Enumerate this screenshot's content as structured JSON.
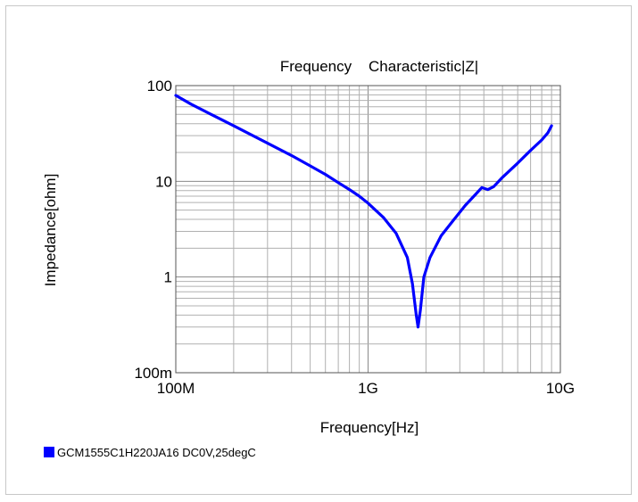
{
  "chart_data": {
    "type": "line",
    "title": "Frequency    Characteristic|Z|",
    "xlabel": "Frequency[Hz]",
    "ylabel": "Impedance[ohm]",
    "xscale": "log",
    "yscale": "log",
    "xlim": [
      100000000,
      10000000000
    ],
    "ylim": [
      0.1,
      100
    ],
    "grid": true,
    "x_ticks": [
      {
        "value": 100000000,
        "label": "100M"
      },
      {
        "value": 1000000000,
        "label": "1G"
      },
      {
        "value": 10000000000,
        "label": "10G"
      }
    ],
    "y_ticks": [
      {
        "value": 0.1,
        "label": "100m"
      },
      {
        "value": 1,
        "label": "1"
      },
      {
        "value": 10,
        "label": "10"
      },
      {
        "value": 100,
        "label": "100"
      }
    ],
    "legend_position": "bottom-left",
    "series": [
      {
        "name": "GCM1555C1H220JA16 DC0V,25degC",
        "color": "#0000ff",
        "points": [
          [
            100000000,
            79
          ],
          [
            120000000,
            64
          ],
          [
            150000000,
            51
          ],
          [
            200000000,
            38
          ],
          [
            300000000,
            25
          ],
          [
            400000000,
            18.6
          ],
          [
            500000000,
            14.5
          ],
          [
            600000000,
            11.8
          ],
          [
            700000000,
            9.7
          ],
          [
            800000000,
            8.2
          ],
          [
            900000000,
            7.0
          ],
          [
            1000000000,
            5.9
          ],
          [
            1200000000,
            4.2
          ],
          [
            1400000000,
            2.85
          ],
          [
            1600000000,
            1.6
          ],
          [
            1700000000,
            0.85
          ],
          [
            1780000000,
            0.4
          ],
          [
            1820000000,
            0.3
          ],
          [
            1870000000,
            0.45
          ],
          [
            1950000000,
            1.0
          ],
          [
            2100000000,
            1.6
          ],
          [
            2400000000,
            2.7
          ],
          [
            2800000000,
            4.0
          ],
          [
            3200000000,
            5.6
          ],
          [
            3600000000,
            7.2
          ],
          [
            3900000000,
            8.6
          ],
          [
            4200000000,
            8.2
          ],
          [
            4500000000,
            8.8
          ],
          [
            5000000000,
            11.0
          ],
          [
            6000000000,
            15.5
          ],
          [
            7000000000,
            21.0
          ],
          [
            8000000000,
            27.0
          ],
          [
            8600000000,
            32.0
          ],
          [
            9000000000,
            38.0
          ]
        ]
      }
    ]
  },
  "legend": {
    "items": [
      {
        "label": "GCM1555C1H220JA16 DC0V,25degC",
        "color": "#0000ff"
      }
    ]
  }
}
